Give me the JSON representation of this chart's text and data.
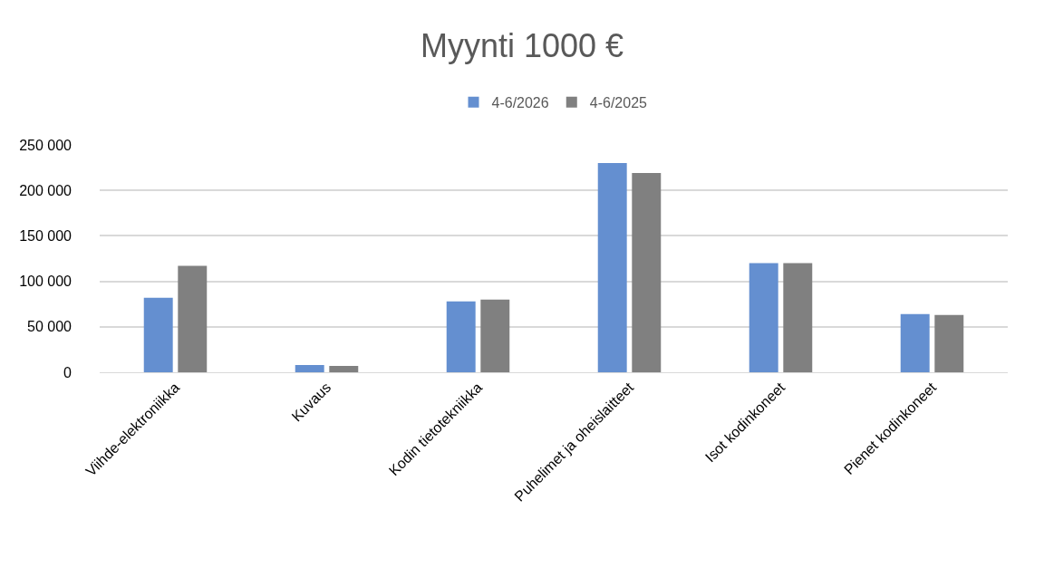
{
  "chart_data": {
    "type": "bar",
    "title": "Myynti 1000 €",
    "categories": [
      "Viihde-elektroniikka",
      "Kuvaus",
      "Kodin tietotekniikka",
      "Puhelimet ja oheislaitteet",
      "Isot kodinkoneet",
      "Pienet kodinkoneet"
    ],
    "series": [
      {
        "name": "4-6/2026",
        "color": "#648fd0",
        "values": [
          82000,
          8000,
          78000,
          230000,
          120000,
          64000
        ]
      },
      {
        "name": "4-6/2025",
        "color": "#808080",
        "values": [
          117000,
          7000,
          80000,
          219000,
          120000,
          63000
        ]
      }
    ],
    "ylim": [
      0,
      250000
    ],
    "yticks": [
      {
        "value": 0,
        "label": "0"
      },
      {
        "value": 50000,
        "label": "50 000"
      },
      {
        "value": 100000,
        "label": "100 000"
      },
      {
        "value": 150000,
        "label": "150 000"
      },
      {
        "value": 200000,
        "label": "200 000"
      },
      {
        "value": 250000,
        "label": "250 000"
      }
    ],
    "grid": "y",
    "legend": "top"
  }
}
